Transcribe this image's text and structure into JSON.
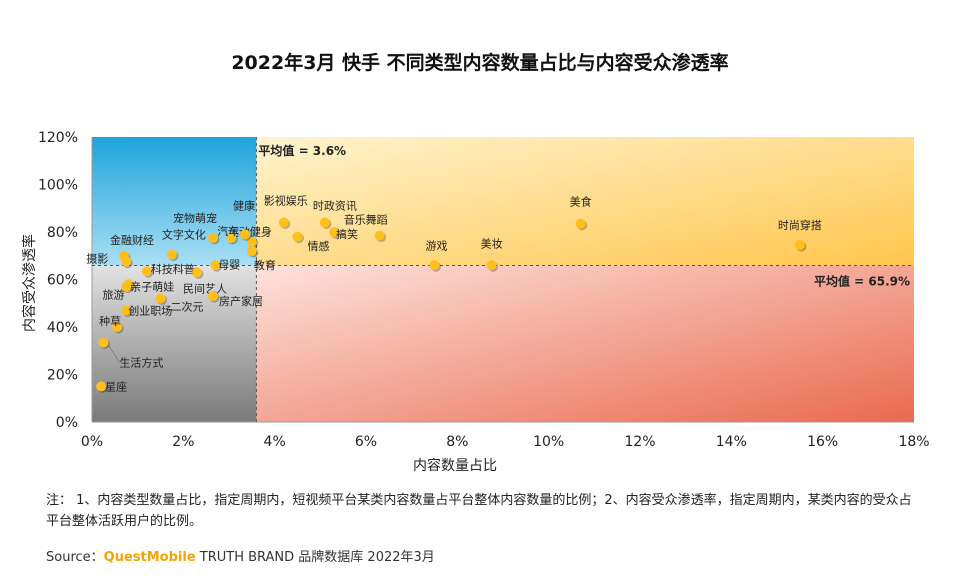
{
  "title": "2022年3月 快手 不同类型内容数量占比与内容受众渗透率",
  "watermark": "QUEST MOBILE",
  "note": "注： 1、内容类型数量占比，指定周期内，短视频平台某类内容数量占平台整体内容数量的比例；2、内容受众渗透率，指定周期内，某类内容的受众占平台整体活跃用户的比例。",
  "source": {
    "prefix": "Source：",
    "brand": "QuestMobile",
    "suffix": " TRUTH BRAND 品牌数据库 2022年3月"
  },
  "colors": {
    "q_top_left": "#1ea4dc",
    "q_top_right": "#ffc64d",
    "q_bottom_right": "#ea6a4f",
    "q_bottom_left": "#7a7a7a",
    "point": "#ffbf1a"
  },
  "chart_data": {
    "type": "scatter",
    "xlabel": "内容数量占比",
    "ylabel": "内容受众渗透率",
    "xlim": [
      0,
      18
    ],
    "ylim": [
      0,
      120
    ],
    "x_ticks": [
      "0%",
      "2%",
      "4%",
      "6%",
      "8%",
      "10%",
      "12%",
      "14%",
      "16%",
      "18%"
    ],
    "y_ticks": [
      "0%",
      "20%",
      "40%",
      "60%",
      "80%",
      "100%",
      "120%"
    ],
    "avg_x": 3.6,
    "avg_x_label": "平均值 = 3.6%",
    "avg_y": 65.9,
    "avg_y_label": "平均值 = 65.9%",
    "points": [
      {
        "label": "时尚穿搭",
        "x": 15.5,
        "y": 74.5
      },
      {
        "label": "美食",
        "x": 10.7,
        "y": 83.5
      },
      {
        "label": "美妆",
        "x": 8.75,
        "y": 66
      },
      {
        "label": "游戏",
        "x": 7.5,
        "y": 66
      },
      {
        "label": "音乐舞蹈",
        "x": 6.3,
        "y": 78.5
      },
      {
        "label": "时政资讯",
        "x": 5.1,
        "y": 84
      },
      {
        "label": "搞笑",
        "x": 5.3,
        "y": 80
      },
      {
        "label": "影视娱乐",
        "x": 4.2,
        "y": 84
      },
      {
        "label": "情感",
        "x": 4.5,
        "y": 78
      },
      {
        "label": "运动健身",
        "x": 3.5,
        "y": 76
      },
      {
        "label": "健康",
        "x": 3.35,
        "y": 79
      },
      {
        "label": "教育",
        "x": 3.5,
        "y": 72
      },
      {
        "label": "汽车",
        "x": 3.05,
        "y": 77.5
      },
      {
        "label": "宠物萌宠",
        "x": 2.65,
        "y": 77.5
      },
      {
        "label": "文字文化",
        "x": 1.75,
        "y": 70.5
      },
      {
        "label": "母婴",
        "x": 2.7,
        "y": 66
      },
      {
        "label": "金融财经",
        "x": 0.7,
        "y": 70
      },
      {
        "label": "摄影",
        "x": 0.75,
        "y": 67.5
      },
      {
        "label": "科技科普",
        "x": 1.2,
        "y": 63.5
      },
      {
        "label": "民间艺人",
        "x": 2.3,
        "y": 63
      },
      {
        "label": "房产家居",
        "x": 2.65,
        "y": 53
      },
      {
        "label": "旅游",
        "x": 0.8,
        "y": 58
      },
      {
        "label": "亲子萌娃",
        "x": 0.75,
        "y": 57
      },
      {
        "label": "二次元",
        "x": 1.5,
        "y": 52
      },
      {
        "label": "创业职场",
        "x": 0.75,
        "y": 47
      },
      {
        "label": "种草",
        "x": 0.55,
        "y": 40
      },
      {
        "label": "生活方式",
        "x": 0.25,
        "y": 33.5
      },
      {
        "label": "星座",
        "x": 0.2,
        "y": 15
      }
    ]
  }
}
